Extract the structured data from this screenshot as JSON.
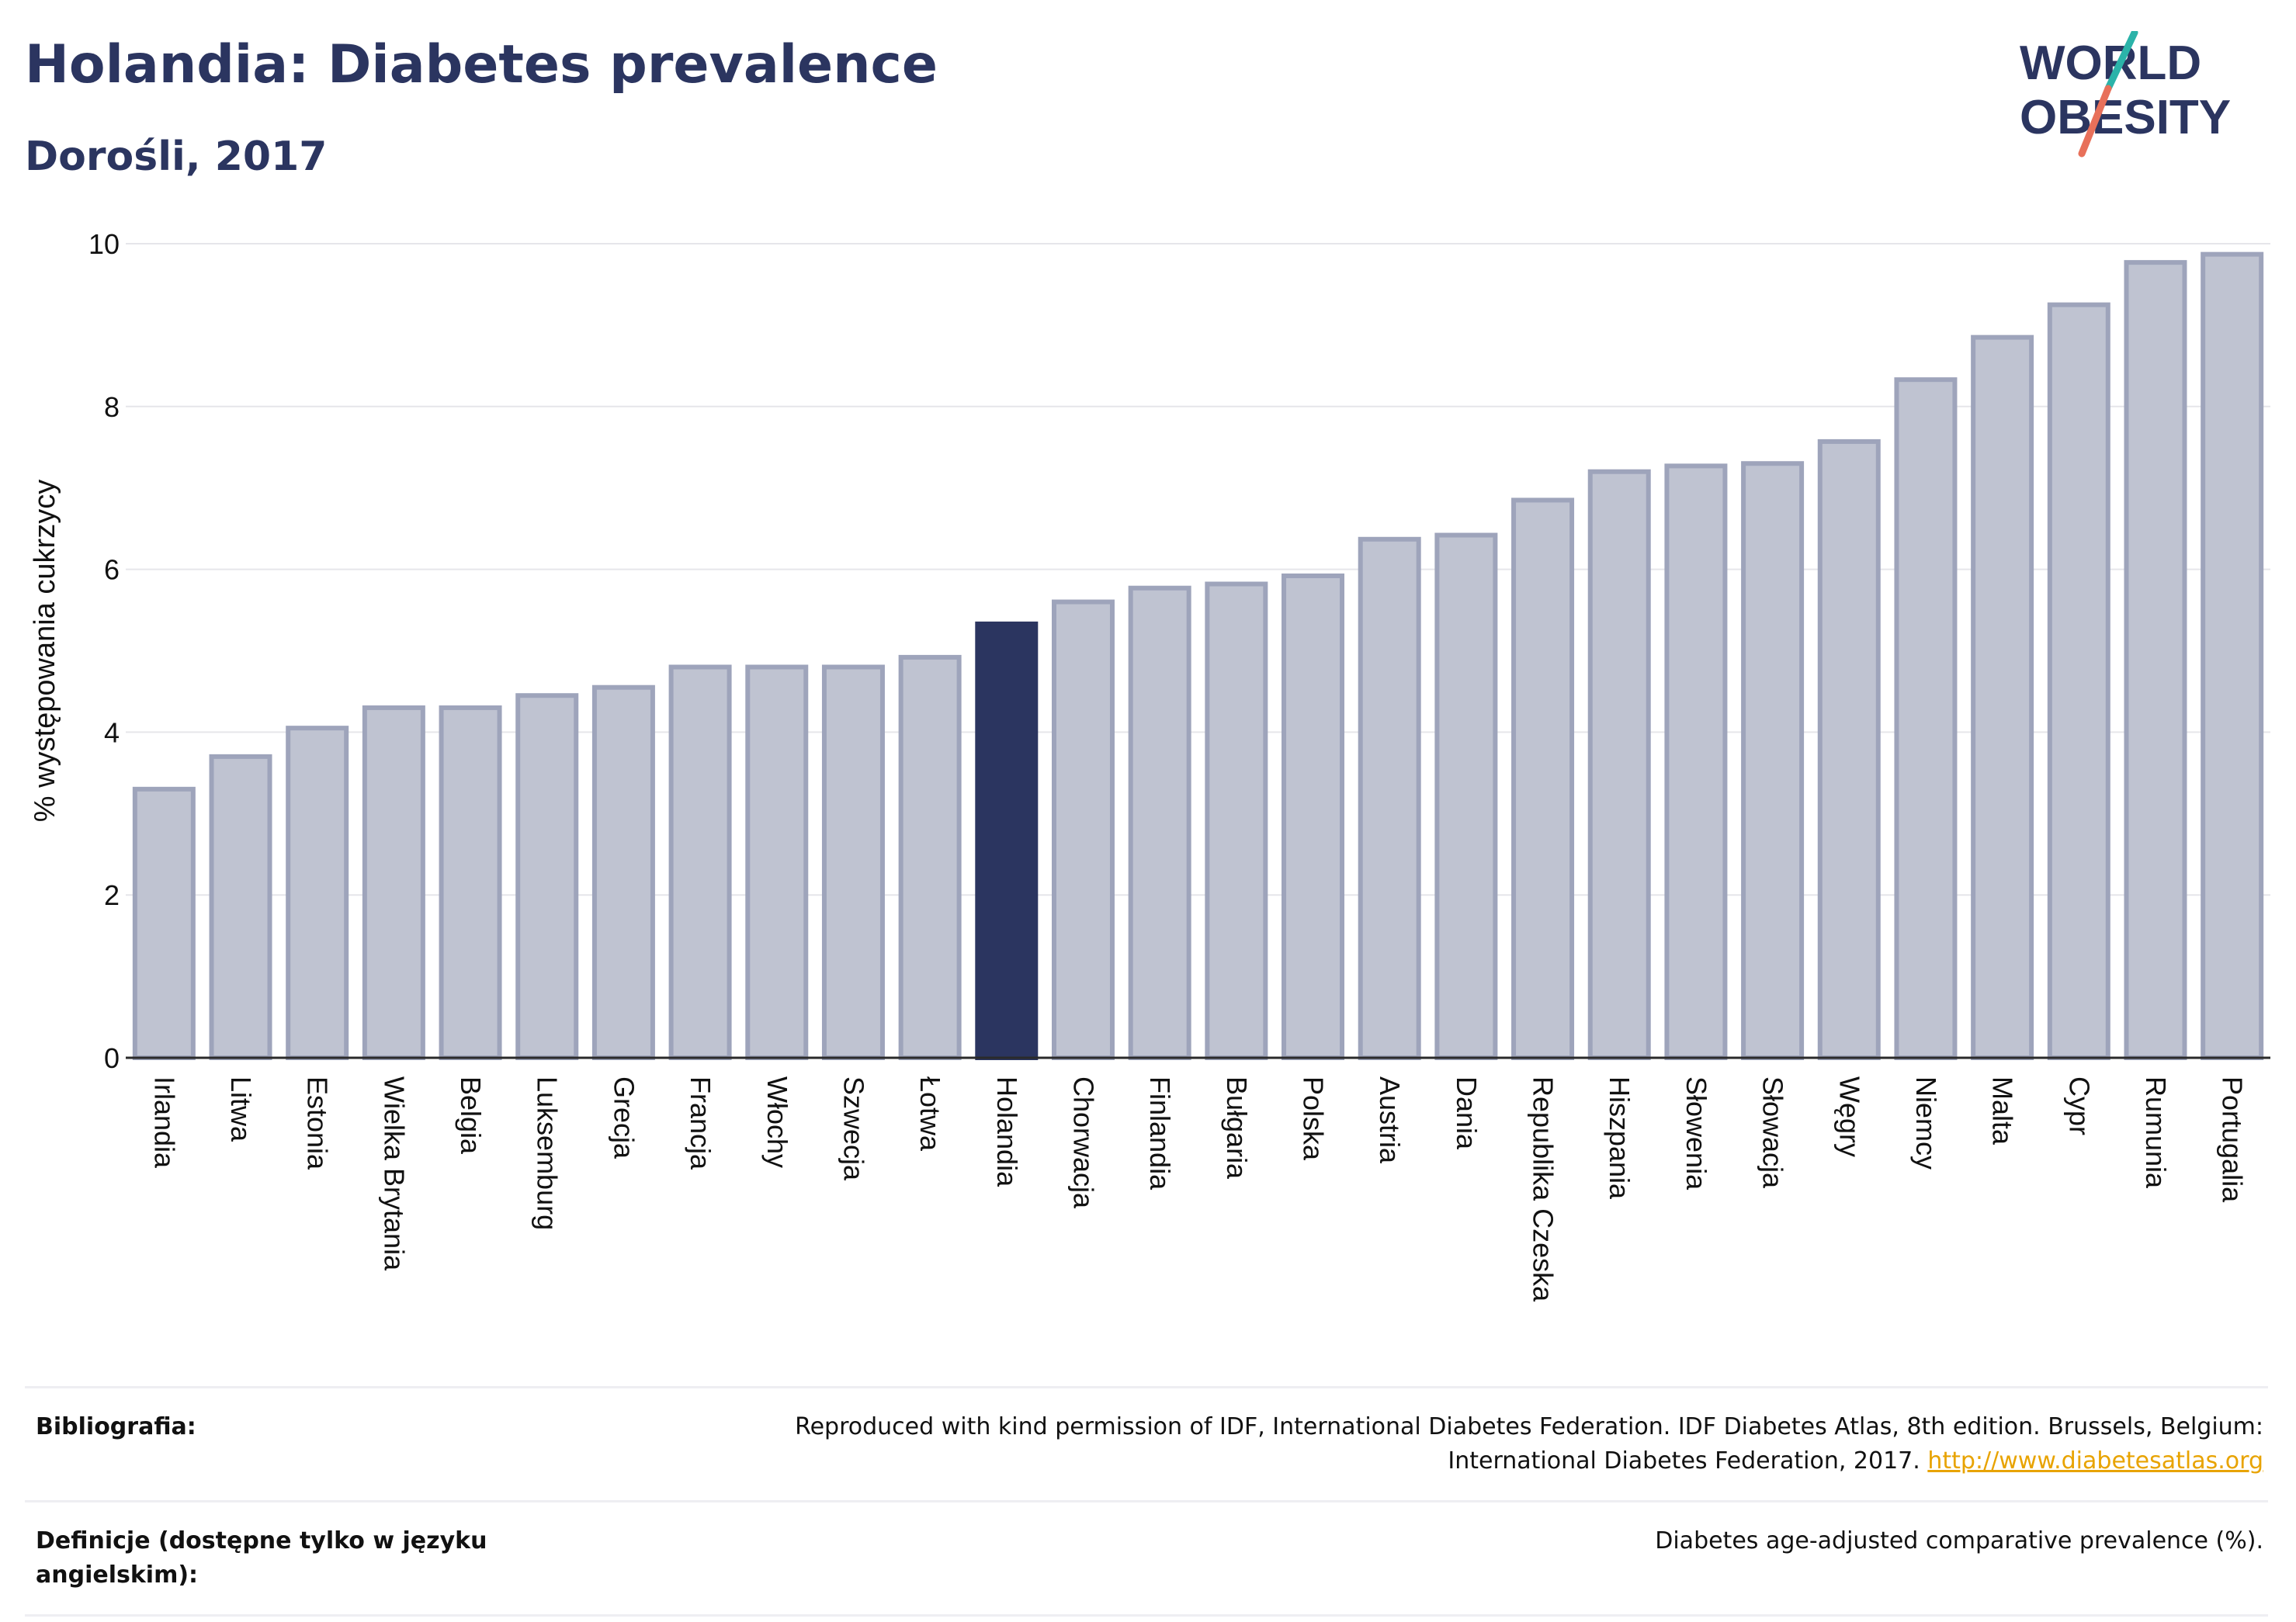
{
  "header": {
    "title": "Holandia: Diabetes prevalence",
    "subtitle": "Dorośli, 2017"
  },
  "logo": {
    "line1": "WORLD",
    "line2": "OBESITY"
  },
  "colors": {
    "highlight": "#2b3560",
    "bar_fill": "#bfc3d1",
    "bar_stroke": "#9ea4bb",
    "accent_teal": "#2bb3a9",
    "accent_coral": "#e8705a",
    "link": "#e8a300"
  },
  "chart_data": {
    "type": "bar",
    "title": "Holandia: Diabetes prevalence",
    "subtitle": "Dorośli, 2017",
    "xlabel": "",
    "ylabel": "% występowania cukrzycy",
    "ylim": [
      0,
      10
    ],
    "yticks": [
      0,
      2,
      4,
      6,
      8,
      10
    ],
    "grid": true,
    "highlighted_category": "Holandia",
    "categories": [
      "Irlandia",
      "Litwa",
      "Estonia",
      "Wielka Brytania",
      "Belgia",
      "Luksemburg",
      "Grecja",
      "Francja",
      "Włochy",
      "Szwecja",
      "Łotwa",
      "Holandia",
      "Chorwacja",
      "Finlandia",
      "Bułgaria",
      "Polska",
      "Austria",
      "Dania",
      "Republika Czeska",
      "Hiszpania",
      "Słowenia",
      "Słowacja",
      "Węgry",
      "Niemcy",
      "Malta",
      "Cypr",
      "Rumunia",
      "Portugalia"
    ],
    "values": [
      3.3,
      3.7,
      4.05,
      4.3,
      4.3,
      4.45,
      4.55,
      4.8,
      4.8,
      4.8,
      4.92,
      5.33,
      5.6,
      5.77,
      5.82,
      5.92,
      6.37,
      6.42,
      6.85,
      7.2,
      7.27,
      7.3,
      7.57,
      8.33,
      8.85,
      9.25,
      9.77,
      9.87
    ]
  },
  "footer": {
    "bibliography_label": "Bibliografia:",
    "bibliography_text": "Reproduced with kind permission of IDF, International Diabetes Federation. IDF Diabetes Atlas, 8th edition. Brussels, Belgium:",
    "bibliography_text2": "International Diabetes Federation, 2017.",
    "bibliography_link": "http://www.diabetesatlas.org",
    "definitions_label": "Definicje (dostępne tylko w języku angielskim):",
    "definitions_text": "Diabetes age-adjusted comparative prevalence (%)."
  }
}
